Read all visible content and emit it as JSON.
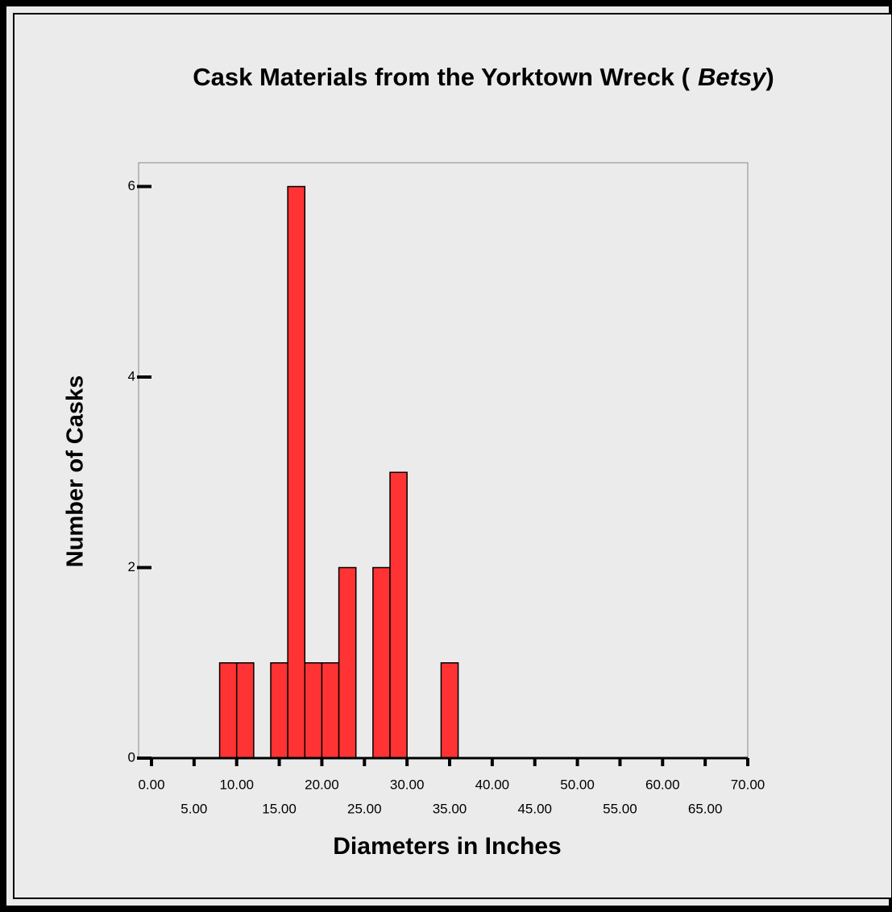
{
  "chart_data": {
    "type": "histogram",
    "title": [
      "Cask Materials from the Yorktown Wreck (",
      "Betsy",
      ")"
    ],
    "x_label": "Diameters in Inches",
    "y_label": "Number of Casks",
    "bins": [
      8,
      10,
      12,
      14,
      16,
      18,
      20,
      22,
      24,
      26,
      28,
      30,
      32,
      34,
      36
    ],
    "counts": [
      1,
      1,
      0,
      1,
      6,
      1,
      1,
      2,
      0,
      2,
      3,
      0,
      0,
      1
    ],
    "color": "#ff3333",
    "xlim": [
      0,
      70
    ],
    "xticks": [
      {
        "value": 0,
        "label": "0.00"
      },
      {
        "value": 5,
        "label": "5.00"
      },
      {
        "value": 10,
        "label": "10.00"
      },
      {
        "value": 15,
        "label": "15.00"
      },
      {
        "value": 20,
        "label": "20.00"
      },
      {
        "value": 25,
        "label": "25.00"
      },
      {
        "value": 30,
        "label": "30.00"
      },
      {
        "value": 35,
        "label": "35.00"
      },
      {
        "value": 40,
        "label": "40.00"
      },
      {
        "value": 45,
        "label": "45.00"
      },
      {
        "value": 50,
        "label": "50.00"
      },
      {
        "value": 55,
        "label": "55.00"
      },
      {
        "value": 60,
        "label": "60.00"
      },
      {
        "value": 65,
        "label": "65.00"
      },
      {
        "value": 70,
        "label": "70.00"
      }
    ],
    "ylim": [
      0,
      6.25
    ],
    "yticks": [
      0,
      2,
      4,
      6
    ],
    "grid": false
  }
}
